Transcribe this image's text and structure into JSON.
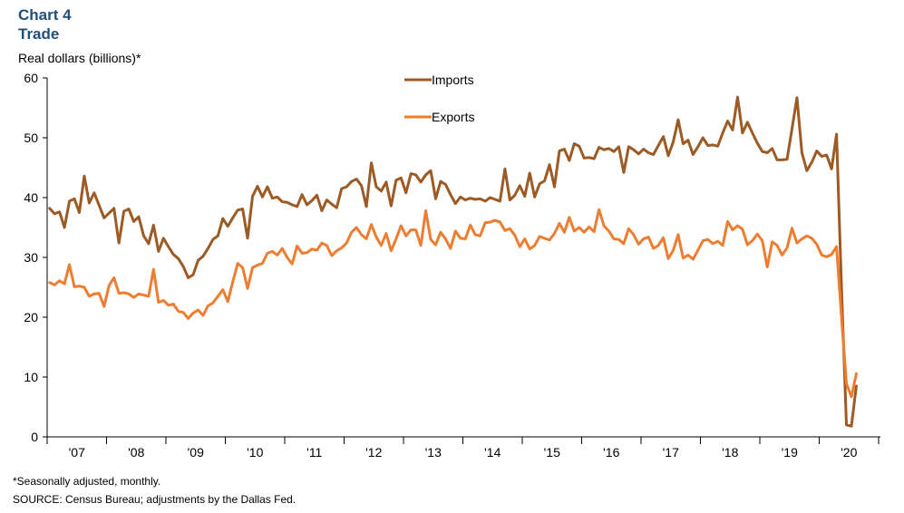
{
  "header": {
    "chart_number": "Chart 4",
    "title": "Trade",
    "unit_label": "Real dollars (billions)*"
  },
  "footnotes": {
    "note": "*Seasonally adjusted, monthly.",
    "source": "SOURCE: Census Bureau; adjustments by the Dallas Fed."
  },
  "chart_data": {
    "type": "line",
    "title": "Trade",
    "ylabel": "Real dollars (billions)*",
    "xlabel": "",
    "ylim": [
      0,
      60
    ],
    "yticks": [
      0,
      10,
      20,
      30,
      40,
      50,
      60
    ],
    "x_start": "2007-01",
    "x_frequency": "monthly",
    "xtick_labels": [
      "'07",
      "'08",
      "'09",
      "'10",
      "'11",
      "'12",
      "'13",
      "'14",
      "'15",
      "'16",
      "'17",
      "'18",
      "'19",
      "'20"
    ],
    "grid": false,
    "legend_position": "top-center",
    "series": [
      {
        "name": "Imports",
        "color": "#9c5a24",
        "values": [
          38.2,
          37.3,
          37.6,
          35.0,
          39.4,
          39.8,
          37.5,
          43.6,
          39.1,
          40.8,
          38.7,
          36.6,
          37.4,
          38.2,
          32.4,
          37.7,
          38.1,
          36.0,
          36.8,
          33.6,
          32.3,
          35.4,
          31.0,
          33.2,
          31.8,
          30.5,
          29.8,
          28.5,
          26.6,
          27.1,
          29.5,
          30.2,
          31.5,
          33.0,
          33.6,
          36.5,
          35.2,
          36.6,
          37.9,
          38.1,
          33.2,
          40.2,
          41.9,
          40.1,
          41.8,
          39.9,
          40.1,
          39.3,
          39.2,
          38.8,
          38.5,
          40.5,
          38.8,
          39.5,
          40.4,
          37.8,
          39.6,
          38.9,
          38.3,
          41.5,
          41.8,
          42.7,
          43.1,
          42.0,
          38.5,
          45.8,
          41.8,
          41.1,
          42.6,
          38.6,
          42.9,
          43.3,
          40.8,
          44.0,
          43.8,
          42.6,
          43.8,
          44.5,
          39.8,
          42.7,
          42.2,
          40.5,
          39.0,
          40.1,
          39.6,
          39.9,
          39.7,
          39.8,
          39.4,
          40.0,
          39.7,
          39.4,
          44.8,
          39.6,
          40.4,
          42.0,
          40.2,
          44.1,
          40.1,
          42.3,
          42.8,
          45.5,
          41.8,
          47.8,
          48.1,
          46.2,
          49.0,
          48.6,
          46.6,
          46.7,
          46.5,
          48.4,
          48.0,
          48.2,
          47.7,
          48.5,
          44.2,
          48.5,
          48.0,
          47.3,
          48.1,
          47.5,
          47.2,
          48.7,
          50.2,
          47.0,
          49.3,
          53.0,
          49.0,
          49.6,
          47.2,
          48.5,
          50.0,
          48.7,
          48.8,
          48.6,
          50.8,
          52.8,
          51.3,
          56.8,
          50.8,
          52.6,
          50.8,
          49.1,
          47.7,
          47.5,
          48.2,
          46.3,
          46.3,
          46.4,
          51.5,
          56.7,
          47.5,
          44.5,
          45.9,
          47.8,
          46.9,
          47.1,
          44.8,
          50.6,
          25.0,
          2.0,
          1.8,
          8.5
        ]
      },
      {
        "name": "Exports",
        "color": "#ed7d31",
        "values": [
          25.8,
          25.4,
          26.1,
          25.6,
          28.8,
          25.1,
          25.2,
          25.0,
          23.5,
          23.9,
          24.0,
          21.8,
          25.3,
          26.6,
          24.0,
          24.1,
          23.9,
          23.3,
          23.9,
          23.7,
          23.5,
          28.0,
          22.5,
          22.8,
          22.0,
          22.2,
          21.0,
          20.8,
          19.8,
          20.7,
          21.2,
          20.3,
          21.9,
          22.4,
          23.5,
          24.6,
          22.6,
          25.9,
          29.0,
          28.3,
          24.8,
          28.3,
          28.7,
          29.0,
          30.7,
          31.0,
          30.4,
          31.5,
          30.0,
          28.9,
          31.9,
          30.7,
          30.8,
          31.4,
          31.2,
          32.4,
          32.0,
          30.3,
          31.1,
          31.6,
          32.4,
          34.2,
          35.0,
          33.8,
          33.1,
          35.5,
          33.4,
          32.0,
          34.0,
          31.1,
          33.1,
          35.3,
          33.6,
          34.6,
          34.6,
          32.0,
          37.8,
          33.0,
          32.1,
          34.2,
          33.1,
          31.5,
          34.4,
          33.2,
          33.1,
          35.4,
          33.8,
          33.6,
          35.8,
          35.9,
          36.2,
          35.9,
          34.5,
          34.8,
          33.7,
          31.8,
          33.1,
          31.4,
          32.0,
          33.5,
          33.2,
          32.9,
          34.0,
          35.7,
          34.2,
          36.7,
          34.4,
          35.0,
          34.2,
          35.1,
          34.3,
          38.0,
          35.3,
          34.4,
          33.1,
          33.0,
          32.3,
          34.8,
          33.8,
          32.2,
          33.1,
          33.4,
          31.5,
          32.0,
          33.3,
          29.8,
          31.2,
          33.8,
          29.9,
          30.4,
          29.7,
          31.2,
          32.8,
          33.0,
          32.3,
          32.7,
          32.0,
          36.0,
          34.6,
          35.3,
          34.7,
          32.1,
          32.8,
          33.9,
          32.8,
          28.4,
          32.6,
          32.0,
          30.4,
          31.6,
          34.9,
          32.4,
          33.1,
          33.6,
          33.2,
          32.2,
          30.4,
          30.1,
          30.5,
          31.8,
          20.0,
          8.9,
          6.7,
          10.6
        ]
      }
    ]
  },
  "legend": {
    "imports_label": "Imports",
    "exports_label": "Exports"
  }
}
